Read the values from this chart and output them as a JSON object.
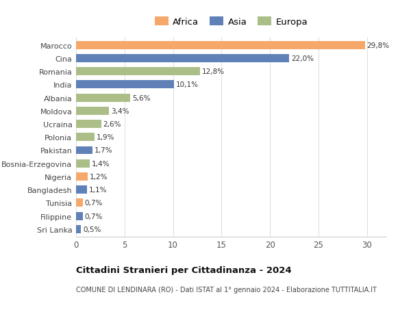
{
  "countries": [
    "Marocco",
    "Cina",
    "Romania",
    "India",
    "Albania",
    "Moldova",
    "Ucraina",
    "Polonia",
    "Pakistan",
    "Bosnia-Erzegovina",
    "Nigeria",
    "Bangladesh",
    "Tunisia",
    "Filippine",
    "Sri Lanka"
  ],
  "values": [
    29.8,
    22.0,
    12.8,
    10.1,
    5.6,
    3.4,
    2.6,
    1.9,
    1.7,
    1.4,
    1.2,
    1.1,
    0.7,
    0.7,
    0.5
  ],
  "labels": [
    "29,8%",
    "22,0%",
    "12,8%",
    "10,1%",
    "5,6%",
    "3,4%",
    "2,6%",
    "1,9%",
    "1,7%",
    "1,4%",
    "1,2%",
    "1,1%",
    "0,7%",
    "0,7%",
    "0,5%"
  ],
  "continents": [
    "Africa",
    "Asia",
    "Europa",
    "Asia",
    "Europa",
    "Europa",
    "Europa",
    "Europa",
    "Asia",
    "Europa",
    "Africa",
    "Asia",
    "Africa",
    "Asia",
    "Asia"
  ],
  "colors": {
    "Africa": "#F5A86A",
    "Asia": "#6080B8",
    "Europa": "#ABBE88"
  },
  "title": "Cittadini Stranieri per Cittadinanza - 2024",
  "subtitle": "COMUNE DI LENDINARA (RO) - Dati ISTAT al 1° gennaio 2024 - Elaborazione TUTTITALIA.IT",
  "xlim": [
    0,
    32
  ],
  "xticks": [
    0,
    5,
    10,
    15,
    20,
    25,
    30
  ],
  "background_color": "#ffffff",
  "grid_color": "#e0e0e0",
  "bar_height": 0.62
}
